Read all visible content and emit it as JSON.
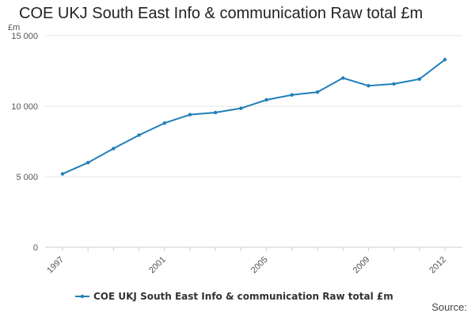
{
  "chart_data": {
    "type": "line",
    "title": "COE UKJ South East Info & communication Raw total £m",
    "ylabel": "£m",
    "xlabel": "",
    "x": [
      1997,
      1998,
      1999,
      2000,
      2001,
      2002,
      2003,
      2004,
      2005,
      2006,
      2007,
      2008,
      2009,
      2010,
      2011,
      2012
    ],
    "x_tick_labels": [
      "1997",
      "2001",
      "2005",
      "2009",
      "2012"
    ],
    "y_tick_labels": [
      "0",
      "5 000",
      "10 000",
      "15 000"
    ],
    "ylim": [
      0,
      15000
    ],
    "yticks": [
      0,
      5000,
      10000,
      15000
    ],
    "grid": true,
    "legend_position": "bottom",
    "series": [
      {
        "name": "COE UKJ South East Info & communication Raw total £m",
        "color": "#1f7fb8",
        "values": [
          5200,
          6000,
          7000,
          7950,
          8800,
          9400,
          9550,
          9850,
          10450,
          10800,
          11000,
          12000,
          11450,
          11580,
          11920,
          13300
        ]
      }
    ],
    "source_label": "Source:"
  }
}
